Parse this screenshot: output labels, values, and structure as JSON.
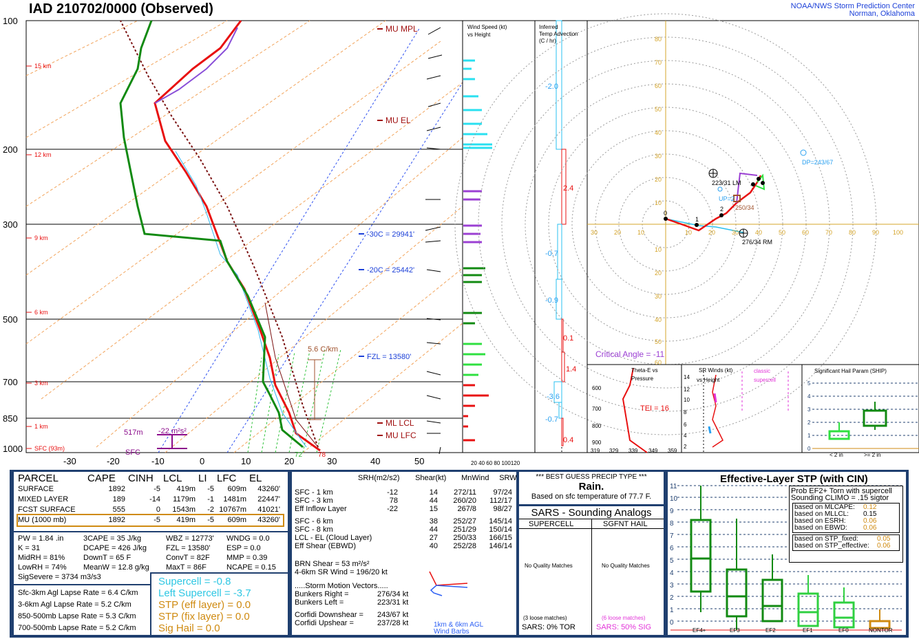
{
  "header": {
    "title": "IAD   210702/0000  (Observed)",
    "org_line1": "NOAA/NWS Storm Prediction Center",
    "org_line2": "Norman, Oklahoma"
  },
  "skewt": {
    "pressure_labels": [
      "100",
      "200",
      "300",
      "500",
      "700",
      "850",
      "1000"
    ],
    "height_labels": [
      "15 km",
      "12 km",
      "9 km",
      "6 km",
      "3 km",
      "1 km",
      "SFC (93m)"
    ],
    "temp_labels": [
      "-30",
      "-20",
      "-10",
      "0",
      "10",
      "20",
      "30",
      "40",
      "50"
    ],
    "annotations": {
      "mu_mpl": "MU  MPL",
      "mu_el": "MU  EL",
      "ml_lcl": "ML  LCL",
      "mu_lfc": "MU  LFC",
      "m30": "-30C = 29941'",
      "m20": "-20C = 25442'",
      "fzl": "FZL = 13580'",
      "lapse": "5.6 C/km",
      "eff_h": "517m",
      "eff_srh": "-22 m²s²",
      "sfc": "SFC",
      "dewpt_sfc": "72",
      "temp_sfc": "78"
    }
  },
  "wind_panel": {
    "title1": "Wind Speed (kt)",
    "title2": "vs Height",
    "scale": "20  40  60  80  100120"
  },
  "temp_adv": {
    "title1": "Inferred",
    "title2": "Temp Advection",
    "title3": "(C / hr)",
    "values": [
      "-2.0",
      "2.4",
      "-0.7",
      "-0.9",
      "0.1",
      "1.4",
      "-3.6",
      "-0.7",
      "0.4"
    ]
  },
  "hodograph": {
    "critical_angle": "Critical Angle = -11",
    "lm": "223/31 LM",
    "rm": "276/34 RM",
    "up": "UP=2",
    "down_mean": "250/34",
    "dp": "DP=243/67",
    "x_labels": [
      "30",
      "20",
      "10",
      "10",
      "20",
      "30",
      "40",
      "50",
      "60",
      "70",
      "80",
      "90",
      "100"
    ],
    "y_labels": [
      "80",
      "70",
      "60",
      "50",
      "40",
      "30",
      "20",
      "10",
      "10",
      "20",
      "30",
      "40",
      "50",
      "60"
    ],
    "points": [
      "0",
      "1",
      "2"
    ]
  },
  "theta": {
    "title1": "Theta-E vs",
    "title2": "Pressure",
    "tei": "TEI = 16",
    "p_labels": [
      "600",
      "700",
      "800",
      "900"
    ],
    "x_labels": [
      "319",
      "329",
      "339",
      "349",
      "359"
    ]
  },
  "srw": {
    "title1": "SR Winds (kt)",
    "title2": "vs Height",
    "classic1": "classic",
    "classic2": "supercell",
    "h_labels": [
      "14",
      "12",
      "10",
      "8",
      "6",
      "4",
      "2"
    ]
  },
  "ship": {
    "title": "Significant Hail Param (SHIP)",
    "y_labels": [
      "5",
      "4",
      "3",
      "2",
      "1",
      "0"
    ],
    "x1": "< 2 in",
    "x2": ">= 2 in"
  },
  "parcel": {
    "headers": [
      "PARCEL",
      "CAPE",
      "CINH",
      "LCL",
      "LI",
      "LFC",
      "EL"
    ],
    "rows": [
      [
        "SURFACE",
        "1892",
        "-5",
        "419m",
        "-5",
        "609m",
        "43260'"
      ],
      [
        "MIXED LAYER",
        "189",
        "-14",
        "1179m",
        "-1",
        "1481m",
        "22447'"
      ],
      [
        "FCST SURFACE",
        "555",
        "0",
        "1543m",
        "-2",
        "10767m",
        "41021'"
      ],
      [
        "MU  (1000 mb)",
        "1892",
        "-5",
        "419m",
        "-5",
        "609m",
        "43260'"
      ]
    ],
    "misc": [
      [
        "PW = 1.84 .in",
        "3CAPE = 35 J/kg",
        "WBZ = 12773'",
        "WNDG = 0.0"
      ],
      [
        "K = 31",
        "DCAPE = 426 J/kg",
        "FZL = 13580'",
        "ESP = 0.0"
      ],
      [
        "MidRH = 81%",
        "DownT = 65 F",
        "ConvT = 82F",
        "MMP = 0.39"
      ],
      [
        "LowRH = 74%",
        "MeanW = 12.8 g/kg",
        "MaxT = 86F",
        "NCAPE = 0.15"
      ]
    ],
    "sigsevere": "SigSevere = 3734 m3/s3",
    "lapse": [
      "Sfc-3km Agl Lapse Rate = 6.4 C/km",
      "3-6km Agl Lapse Rate = 5.2 C/km",
      "850-500mb Lapse Rate = 5.3 C/km",
      "700-500mb Lapse Rate = 5.2 C/km"
    ],
    "supercell": "Supercell = -0.8",
    "left_supercell": "Left Supercell = -3.7",
    "stp_eff": "STP (eff layer) = 0.0",
    "stp_fix": "STP (fix layer) = 0.0",
    "sighail": "Sig Hail = 0.0"
  },
  "kinematics": {
    "headers": [
      "SRH(m2/s2)",
      "Shear(kt)",
      "MnWind",
      "SRW"
    ],
    "rows": [
      [
        "SFC - 1 km",
        "-12",
        "14",
        "272/11",
        "97/24"
      ],
      [
        "SFC - 3 km",
        "78",
        "44",
        "260/20",
        "112/17"
      ],
      [
        "Eff Inflow Layer",
        "-22",
        "15",
        "267/8",
        "98/27"
      ],
      [
        "SFC - 6 km",
        "38",
        "252/27",
        "145/14",
        ""
      ],
      [
        "SFC - 8 km",
        "44",
        "251/29",
        "150/14",
        ""
      ],
      [
        "LCL - EL (Cloud Layer)",
        "27",
        "250/33",
        "166/15",
        ""
      ],
      [
        "Eff Shear (EBWD)",
        "40",
        "252/28",
        "146/14",
        ""
      ]
    ],
    "brn": "BRN Shear = 53 m²/s²",
    "sr46": "4-6km SR Wind =          196/20 kt",
    "storm_motion": ".....Storm Motion Vectors.....",
    "bunkers_right": "Bunkers Right =",
    "bunkers_right_v": "276/34 kt",
    "bunkers_left": "Bunkers Left =",
    "bunkers_left_v": "223/31 kt",
    "corfidi_down": "Corfidi Downshear =",
    "corfidi_down_v": "243/67 kt",
    "corfidi_up": "Corfidi Upshear =",
    "corfidi_up_v": "237/28 kt",
    "barbs1": "1km & 6km AGL",
    "barbs2": "Wind Barbs"
  },
  "precip": {
    "title": "*** BEST GUESS PRECIP TYPE ***",
    "type": "Rain.",
    "note": "Based on sfc temperature of 77.7 F."
  },
  "sars": {
    "title": "SARS - Sounding Analogs",
    "col1": "SUPERCELL",
    "col2": "SGFNT HAIL",
    "nq1": "No Quality Matches",
    "nq2": "No Quality Matches",
    "loose1": "(3 loose matches)",
    "loose2": "(6 loose matches)",
    "tor": "SARS:  0% TOR",
    "sig": "SARS:  50% SIG"
  },
  "stp": {
    "title": "Effective-Layer STP (with CIN)",
    "prob1": "Prob EF2+ Torn with supercell",
    "prob2": "Sounding CLIMO = .15 sigtor",
    "based": [
      [
        "based on MLCAPE:",
        "0.12"
      ],
      [
        "based on MLLCL:",
        "0.15"
      ],
      [
        "based on ESRH:",
        "0.06"
      ],
      [
        "based on EBWD:",
        "0.06"
      ]
    ],
    "based2": [
      [
        "based on STP_fixed:",
        "0.05"
      ],
      [
        "based on STP_effective:",
        "0.06"
      ]
    ],
    "y_labels": [
      "11",
      "10",
      "9",
      "8",
      "7",
      "6",
      "5",
      "4",
      "3",
      "2",
      "1",
      "0"
    ],
    "x_labels": [
      "EF4+",
      "EF3",
      "EF2",
      "EF1",
      "EF0",
      "NONTOR"
    ]
  },
  "chart_data": {
    "type": "line",
    "title": "IAD   210702/0000  (Observed)",
    "series": [
      {
        "name": "Temperature",
        "x_units": "C",
        "points": [
          [
            1000,
            25.6
          ],
          [
            950,
            21
          ],
          [
            850,
            16
          ],
          [
            700,
            8.5
          ],
          [
            600,
            3
          ],
          [
            500,
            -5
          ],
          [
            400,
            -15
          ],
          [
            300,
            -31
          ],
          [
            250,
            -41
          ],
          [
            200,
            -52
          ],
          [
            150,
            -60
          ],
          [
            100,
            -67
          ]
        ]
      },
      {
        "name": "Dewpoint",
        "x_units": "C",
        "points": [
          [
            1000,
            22.2
          ],
          [
            950,
            17
          ],
          [
            850,
            13
          ],
          [
            700,
            5
          ],
          [
            600,
            -2
          ],
          [
            500,
            -7
          ],
          [
            400,
            -20
          ],
          [
            300,
            -45
          ],
          [
            200,
            -62
          ],
          [
            150,
            -68
          ],
          [
            100,
            -75
          ]
        ]
      }
    ],
    "xlim": [
      -30,
      50
    ],
    "ylim": [
      1050,
      100
    ]
  }
}
